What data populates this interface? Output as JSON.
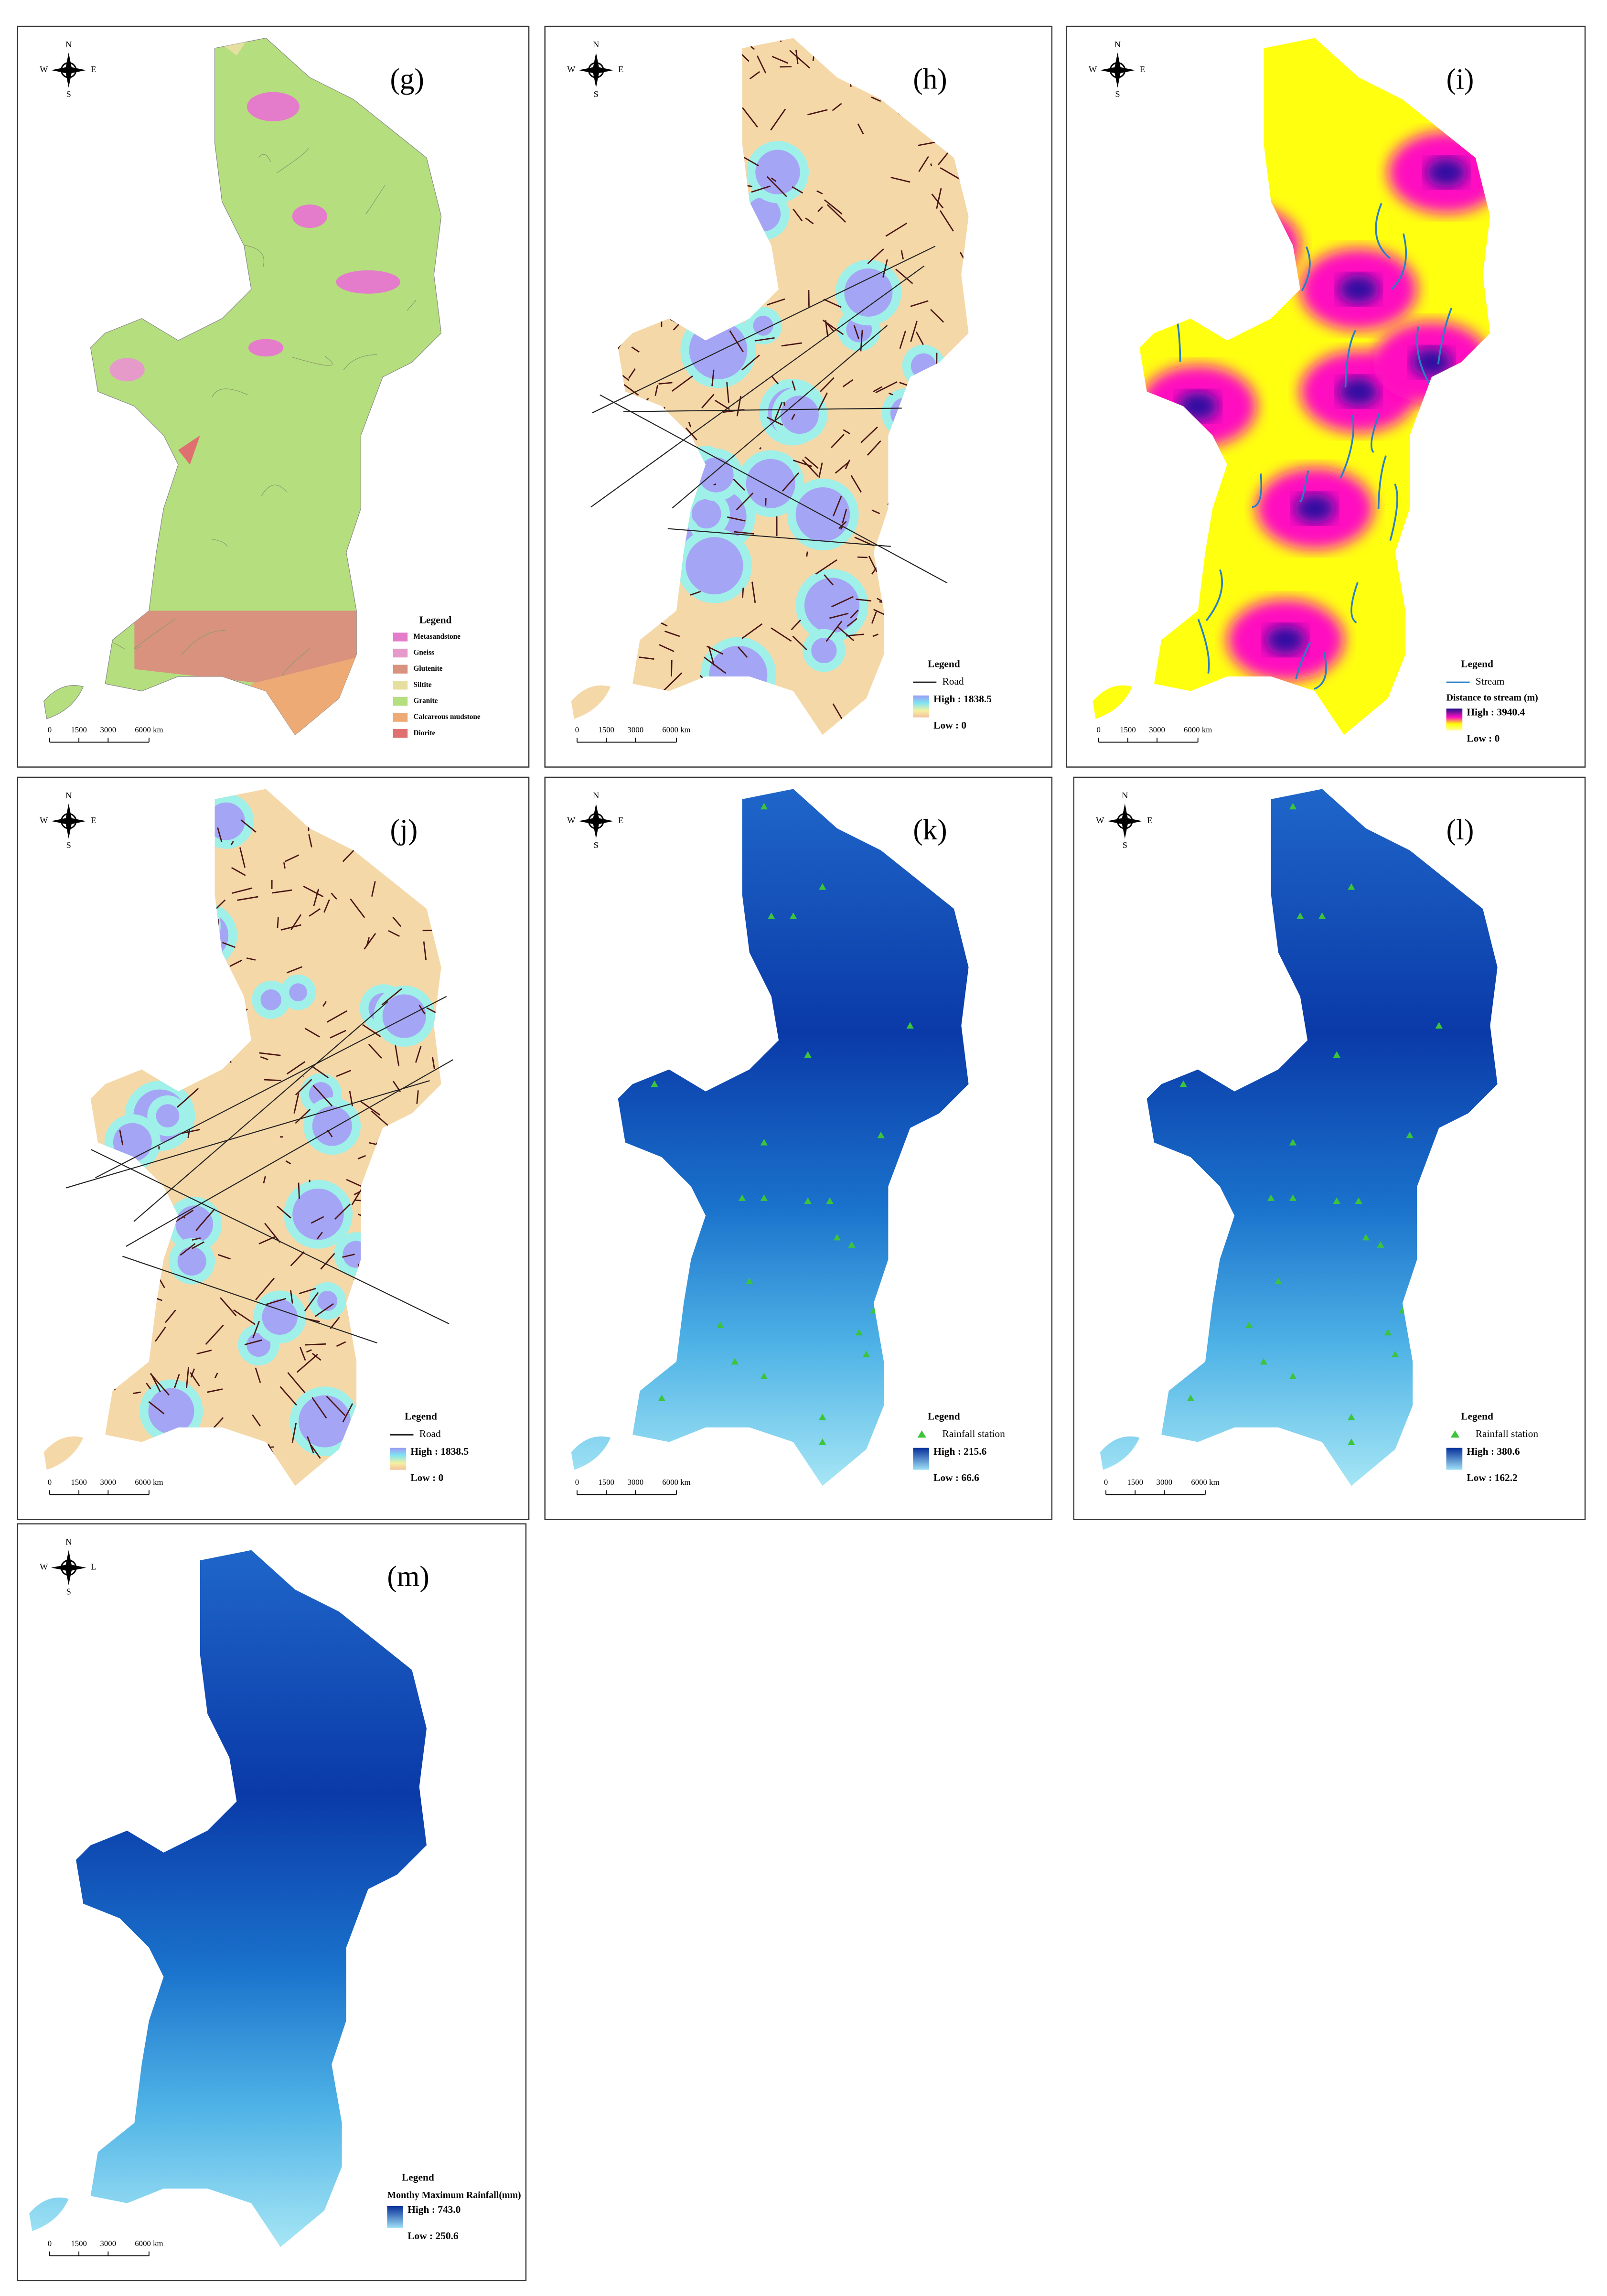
{
  "panels": [
    {
      "label": "(g)",
      "compass": {
        "n": "N",
        "s": "S",
        "w": "W",
        "e": "E"
      },
      "scale": [
        "0",
        "1500",
        "3000",
        "6000 km"
      ],
      "legend": {
        "title": "Legend",
        "items": [
          {
            "name": "Metasandstone",
            "color": "#e47ccb"
          },
          {
            "name": "Gneiss",
            "color": "#e59ac9"
          },
          {
            "name": "Glutenite",
            "color": "#d8927e"
          },
          {
            "name": "Siltite",
            "color": "#e6e0a0"
          },
          {
            "name": "Granite",
            "color": "#b5de7e"
          },
          {
            "name": "Calcareous mudstone",
            "color": "#eeaa74"
          },
          {
            "name": "Diorite",
            "color": "#e07070"
          }
        ]
      }
    },
    {
      "label": "(h)",
      "compass": {
        "n": "N",
        "s": "S",
        "w": "W",
        "e": "E"
      },
      "scale": [
        "0",
        "1500",
        "3000",
        "6000 km"
      ],
      "legend": {
        "title": "Legend",
        "items": [
          {
            "name": "Road",
            "color": "#222222"
          }
        ],
        "high": "High : 1838.5",
        "low": "Low : 0"
      }
    },
    {
      "label": "(i)",
      "compass": {
        "n": "N",
        "s": "S",
        "w": "W",
        "e": "E"
      },
      "scale": [
        "0",
        "1500",
        "3000",
        "6000 km"
      ],
      "legend": {
        "title": "Legend",
        "items": [
          {
            "name": "Stream",
            "color": "#2a7fc4"
          }
        ],
        "subtitle": "Distance to stream (m)",
        "high": "High : 3940.4",
        "low": "Low : 0"
      }
    },
    {
      "label": "(j)",
      "compass": {
        "n": "N",
        "s": "S",
        "w": "W",
        "e": "E"
      },
      "scale": [
        "0",
        "1500",
        "3000",
        "6000 km"
      ],
      "legend": {
        "title": "Legend",
        "items": [
          {
            "name": "Road",
            "color": "#222222"
          }
        ],
        "high": "High : 1838.5",
        "low": "Low : 0"
      }
    },
    {
      "label": "(k)",
      "compass": {
        "n": "N",
        "s": "S",
        "w": "W",
        "e": "E"
      },
      "scale": [
        "0",
        "1500",
        "3000",
        "6000 km"
      ],
      "legend": {
        "title": "Legend",
        "items": [
          {
            "name": "Rainfall station",
            "color": "#3cc43c"
          }
        ],
        "high": "High : 215.6",
        "low": "Low : 66.6"
      }
    },
    {
      "label": "(l)",
      "compass": {
        "n": "N",
        "s": "S",
        "w": "W",
        "e": "E"
      },
      "scale": [
        "0",
        "1500",
        "3000",
        "6000 km"
      ],
      "legend": {
        "title": "Legend",
        "items": [
          {
            "name": "Rainfall station",
            "color": "#3cc43c"
          }
        ],
        "high": "High : 380.6",
        "low": "Low : 162.2"
      }
    },
    {
      "label": "(m)",
      "compass": {
        "n": "N",
        "s": "S",
        "w": "W",
        "e": "L"
      },
      "scale": [
        "0",
        "1500",
        "3000",
        "6000 km"
      ],
      "legend": {
        "title": "Legend",
        "subtitle": "Monthy Maximum Rainfall(mm)",
        "high": "High : 743.0",
        "low": "Low : 250.6"
      }
    }
  ]
}
